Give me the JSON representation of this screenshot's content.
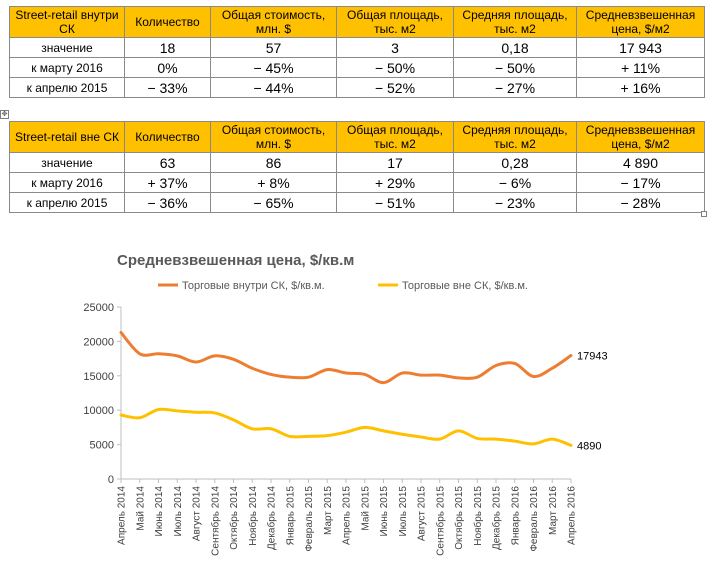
{
  "table_inside": {
    "headers": [
      "Street-retail внутри СК",
      "Количество",
      "Общая стоимость, млн. $",
      "Общая площадь, тыс. м2",
      "Средняя площадь, тыс. м2",
      "Средневзвешенная цена, $/м2"
    ],
    "rows": [
      {
        "label": "значение",
        "cells": [
          "18",
          "57",
          "3",
          "0,18",
          "17 943"
        ]
      },
      {
        "label": "к марту 2016",
        "cells": [
          "0%",
          "− 45%",
          "− 50%",
          "− 50%",
          "+ 11%"
        ]
      },
      {
        "label": "к апрелю 2015",
        "cells": [
          "− 33%",
          "− 44%",
          "− 52%",
          "− 27%",
          "+ 16%"
        ]
      }
    ]
  },
  "table_outside": {
    "headers": [
      "Street-retail вне СК",
      "Количество",
      "Общая стоимость, млн. $",
      "Общая площадь, тыс. м2",
      "Средняя площадь, тыс. м2",
      "Средневзвешенная цена, $/м2"
    ],
    "rows": [
      {
        "label": "значение",
        "cells": [
          "63",
          "86",
          "17",
          "0,28",
          "4 890"
        ]
      },
      {
        "label": "к марту 2016",
        "cells": [
          "+ 37%",
          "+ 8%",
          "+ 29%",
          "− 6%",
          "− 17%"
        ]
      },
      {
        "label": "к апрелю 2015",
        "cells": [
          "− 36%",
          "− 65%",
          "− 51%",
          "− 23%",
          "− 28%"
        ]
      }
    ]
  },
  "chart_data": {
    "type": "line",
    "title": "Средневзвешенная цена, $/кв.м",
    "x": [
      "Апрель 2014",
      "Май 2014",
      "Июнь 2014",
      "Июль 2014",
      "Август 2014",
      "Сентябрь 2014",
      "Октябрь 2014",
      "Ноябрь 2014",
      "Декабрь 2014",
      "Январь 2015",
      "Февраль 2015",
      "Март 2015",
      "Апрель 2015",
      "Май 2015",
      "Июнь 2015",
      "Июль 2015",
      "Август 2015",
      "Сентябрь 2015",
      "Октябрь 2015",
      "Ноябрь 2015",
      "Декабрь 2015",
      "Январь 2016",
      "Февраль 2016",
      "Март 2016",
      "Апрель 2016"
    ],
    "series": [
      {
        "name": "Торговые внутри СК, $/кв.м.",
        "color": "#ed7d31",
        "values": [
          21300,
          18200,
          18200,
          17900,
          17000,
          17900,
          17400,
          16100,
          15200,
          14800,
          14800,
          15900,
          15400,
          15200,
          14000,
          15400,
          15100,
          15100,
          14700,
          14800,
          16500,
          16800,
          14900,
          16100,
          17943
        ]
      },
      {
        "name": "Торговые вне СК, $/кв.м.",
        "color": "#ffc000",
        "values": [
          9300,
          8900,
          10100,
          9900,
          9700,
          9600,
          8600,
          7300,
          7300,
          6200,
          6200,
          6300,
          6800,
          7500,
          7000,
          6500,
          6100,
          5800,
          7000,
          5900,
          5800,
          5500,
          5100,
          5800,
          4890
        ]
      }
    ],
    "end_labels": [
      "17943",
      "4890"
    ],
    "y_ticks": [
      "0",
      "5000",
      "10000",
      "15000",
      "20000",
      "25000"
    ],
    "ylim": [
      0,
      25000
    ],
    "grid": false,
    "legend_position": "top"
  }
}
